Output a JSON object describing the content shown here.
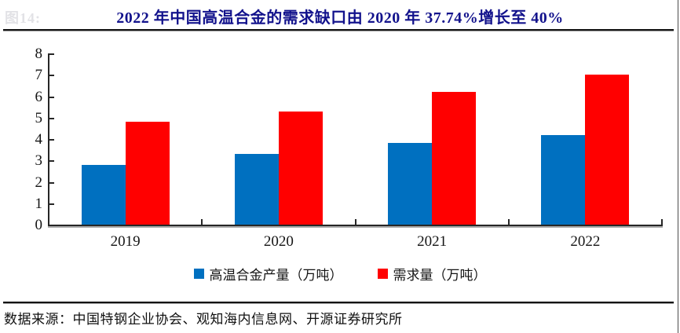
{
  "figure_label_ghost": "图14:",
  "title": "2022 年中国高温合金的需求缺口由 2020 年 37.74%增长至 40%",
  "source": "数据来源：中国特钢企业协会、观知海内信息网、开源证券研究所",
  "colors": {
    "production_blue": "#0070C0",
    "demand_red": "#FF0000",
    "title_navy": "#12128C",
    "axis": "#262626"
  },
  "chart_data": {
    "type": "bar",
    "title": "2022 年中国高温合金的需求缺口由 2020 年 37.74%增长至 40%",
    "categories": [
      "2019",
      "2020",
      "2021",
      "2022"
    ],
    "series": [
      {
        "name": "高温合金产量（万吨）",
        "color_key": "production_blue",
        "values": [
          2.8,
          3.3,
          3.8,
          4.2
        ]
      },
      {
        "name": "需求量（万吨）",
        "color_key": "demand_red",
        "values": [
          4.8,
          5.3,
          6.2,
          7.0
        ]
      }
    ],
    "xlabel": "",
    "ylabel": "",
    "ylim": [
      0,
      8
    ],
    "ytick_step": 1,
    "grid": false,
    "legend_position": "bottom-center"
  }
}
